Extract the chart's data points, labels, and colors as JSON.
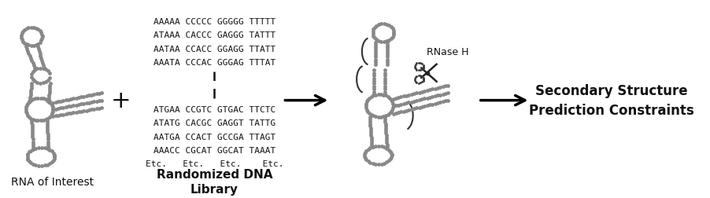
{
  "background_color": "#ffffff",
  "text_color": "#111111",
  "label_rna": "RNA of Interest",
  "label_dna": "Randomized DNA\nLibrary",
  "label_result": "Secondary Structure\nPrediction Constraints",
  "label_rnase": "RNase H",
  "dna_upper_lines": [
    "AAAAA CCCCC GGGGG TTTTT",
    "ATAAA CACCC GAGGG TATTT",
    "AATAA CCACC GGAGG TTATT",
    "AAATA CCCAC GGGAG TTTAT"
  ],
  "dna_lower_lines": [
    "ATGAA CCGTC GTGAC TTCTC",
    "ATATG CACGC GAGGT TATTG",
    "AATGA CCACT GCCGA TTAGT",
    "AAACC CGCAT GGCAT TAAAT",
    "Etc.   Etc.   Etc.    Etc."
  ],
  "dot_color": "#888888",
  "dot_size": 3.5,
  "font_size_label": 10,
  "font_size_label_bold": 11,
  "font_size_dna": 8,
  "font_size_result": 12,
  "font_size_rnase": 9
}
